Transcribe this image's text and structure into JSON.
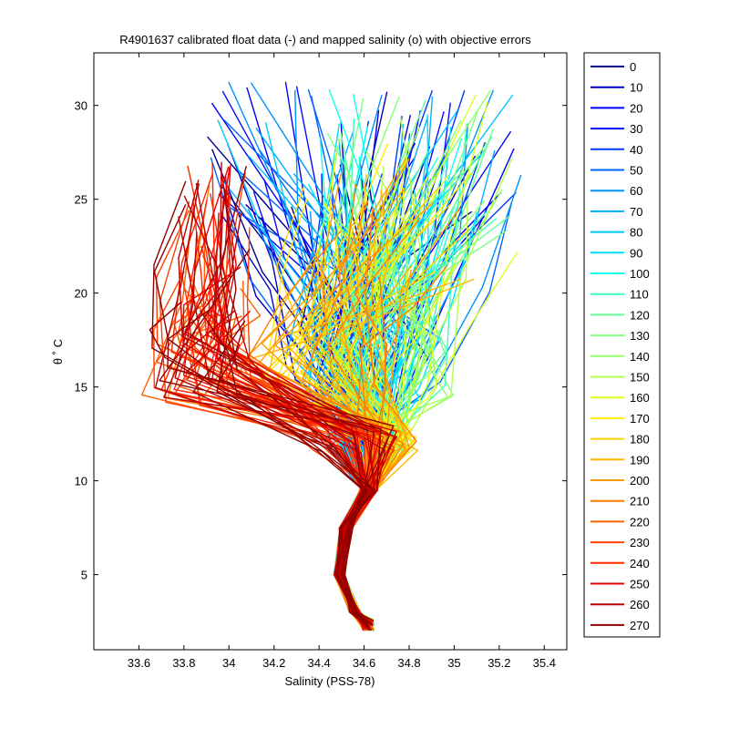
{
  "chart_data": {
    "type": "line",
    "title": "R4901637 calibrated float data (-) and mapped salinity (o) with objective errors",
    "xlabel": "Salinity (PSS-78)",
    "ylabel": "θ ˚ C",
    "xlim": [
      33.4,
      35.5
    ],
    "ylim": [
      1,
      32.8
    ],
    "x_ticks": [
      33.6,
      33.8,
      34,
      34.2,
      34.4,
      34.6,
      34.8,
      35,
      35.2,
      35.4
    ],
    "y_ticks": [
      5,
      10,
      15,
      20,
      25,
      30
    ],
    "grid": false,
    "legend_position": "outside-right",
    "colormap": "jet",
    "legend": [
      "0",
      "10",
      "20",
      "30",
      "40",
      "50",
      "60",
      "70",
      "80",
      "90",
      "100",
      "110",
      "120",
      "130",
      "140",
      "150",
      "160",
      "170",
      "180",
      "190",
      "200",
      "210",
      "220",
      "230",
      "240",
      "250",
      "260",
      "270"
    ],
    "legend_colors": [
      "#00008f",
      "#0000c8",
      "#0000ff",
      "#0a0aff",
      "#0038ff",
      "#0065ff",
      "#0092ff",
      "#00afff",
      "#00c8ff",
      "#00e0ff",
      "#10ffef",
      "#3cffc3",
      "#68ff97",
      "#7fff80",
      "#96ff69",
      "#b4ff4b",
      "#e0ff1f",
      "#ffee00",
      "#ffd200",
      "#ffb500",
      "#ff9b00",
      "#ff7d00",
      "#ff5f00",
      "#ff4200",
      "#ff2600",
      "#e60000",
      "#bb0000",
      "#8f0000"
    ]
  }
}
